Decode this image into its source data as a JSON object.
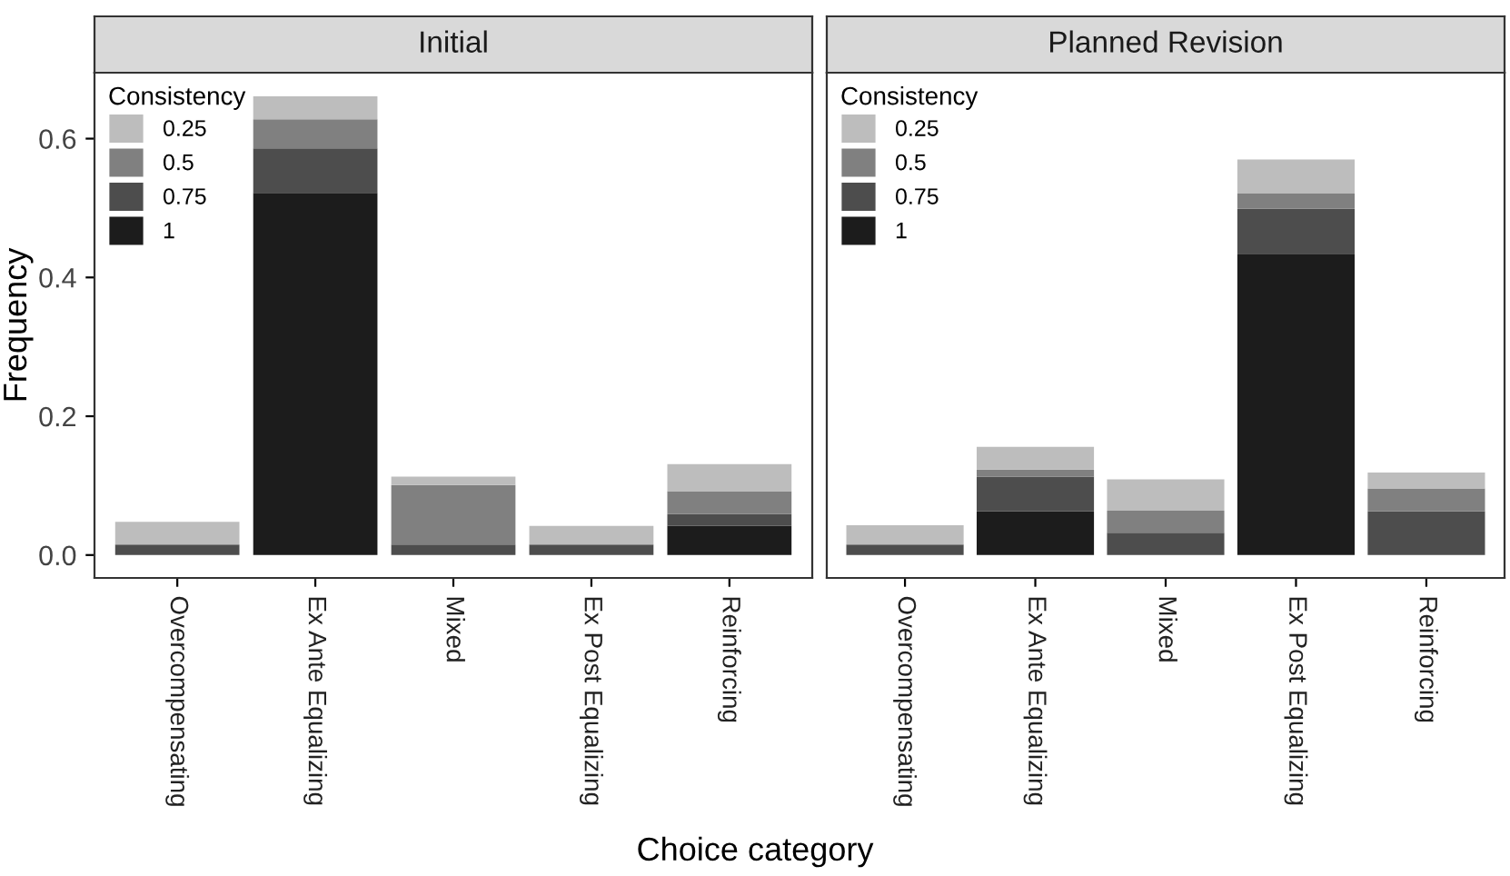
{
  "chart_data": [
    {
      "type": "bar",
      "title": "Initial",
      "ylabel": "Frequency",
      "xlabel": "Choice category",
      "stacked": true,
      "legend": "top left",
      "legend_title": "Consistency",
      "grid": false,
      "categories": [
        "Overcompensating",
        "Ex Ante Equalizing",
        "Mixed",
        "Ex Post Equalizing",
        "Reinforcing"
      ],
      "ylim": [
        -0.033,
        0.695
      ],
      "yticks": [
        {
          "value": 0,
          "label": "0.0"
        },
        0.2,
        0.4,
        0.6
      ],
      "series": [
        {
          "name": "1",
          "color": "#1c1c1c",
          "values": [
            null,
            0.522,
            null,
            null,
            0.042
          ]
        },
        {
          "name": "0.75",
          "color": "#4d4d4d",
          "values": [
            0.015,
            0.064,
            0.015,
            0.015,
            0.017
          ]
        },
        {
          "name": "0.5",
          "color": "#808080",
          "values": [
            null,
            0.042,
            0.086,
            null,
            0.033
          ]
        },
        {
          "name": "0.25",
          "color": "#bdbdbd",
          "values": [
            0.033,
            0.033,
            0.012,
            0.027,
            0.039
          ]
        }
      ]
    },
    {
      "type": "bar",
      "title": "Planned Revision",
      "stacked": true,
      "legend": "top left",
      "legend_title": "Consistency",
      "grid": false,
      "tick_labels": "x",
      "categories": [
        "Overcompensating",
        "Ex Ante Equalizing",
        "Mixed",
        "Ex Post Equalizing",
        "Reinforcing"
      ],
      "ylim": [
        -0.033,
        0.695
      ],
      "series": [
        {
          "name": "1",
          "color": "#1c1c1c",
          "values": [
            null,
            0.063,
            null,
            0.434,
            null
          ]
        },
        {
          "name": "0.75",
          "color": "#4d4d4d",
          "values": [
            0.015,
            0.05,
            0.032,
            0.065,
            0.063
          ]
        },
        {
          "name": "0.5",
          "color": "#808080",
          "values": [
            null,
            0.01,
            0.032,
            0.022,
            0.033
          ]
        },
        {
          "name": "0.25",
          "color": "#bdbdbd",
          "values": [
            0.028,
            0.033,
            0.045,
            0.049,
            0.023
          ]
        }
      ]
    }
  ]
}
